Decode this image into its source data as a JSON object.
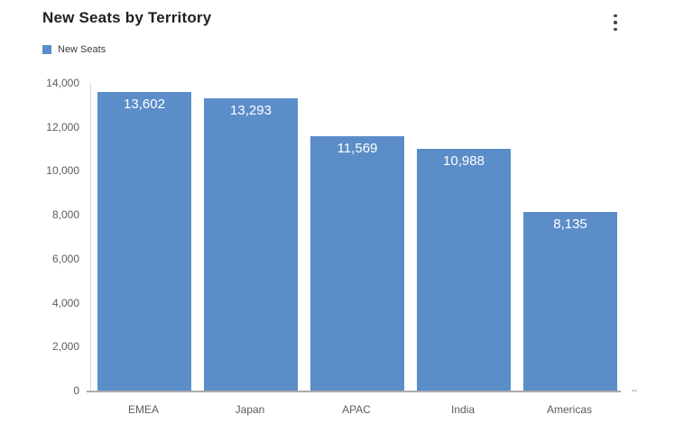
{
  "header": {
    "title": "New Seats by Territory"
  },
  "menu": {
    "icon": "kebab-vertical-icon"
  },
  "legend": {
    "position": "top-left",
    "items": [
      {
        "label": "New Seats",
        "color": "#5b8dc9"
      }
    ]
  },
  "chart_data": {
    "type": "bar",
    "title": "New Seats by Territory",
    "categories": [
      "EMEA",
      "Japan",
      "APAC",
      "India",
      "Americas"
    ],
    "series": [
      {
        "name": "New Seats",
        "color": "#5b8dc9",
        "values": [
          13602,
          13293,
          11569,
          10988,
          8135
        ],
        "value_labels": [
          "13,602",
          "13,293",
          "11,569",
          "10,988",
          "8,135"
        ]
      }
    ],
    "xlabel": "",
    "ylabel": "",
    "ylim": [
      0,
      14000
    ],
    "yticks": {
      "values": [
        0,
        2000,
        4000,
        6000,
        8000,
        10000,
        12000,
        14000
      ],
      "labels": [
        "0",
        "2,000",
        "4,000",
        "6,000",
        "8,000",
        "10,000",
        "12,000",
        "14,000"
      ]
    },
    "grid": false,
    "legend_position": "top-left",
    "value_labels_inside_bars": true
  },
  "colors": {
    "bar": "#5b8dc9",
    "baseline": "#ababab",
    "y_axis_line": "#d9d9d9",
    "tick_text": "#5c5c5c",
    "title_text": "#212121",
    "background": "#ffffff"
  }
}
